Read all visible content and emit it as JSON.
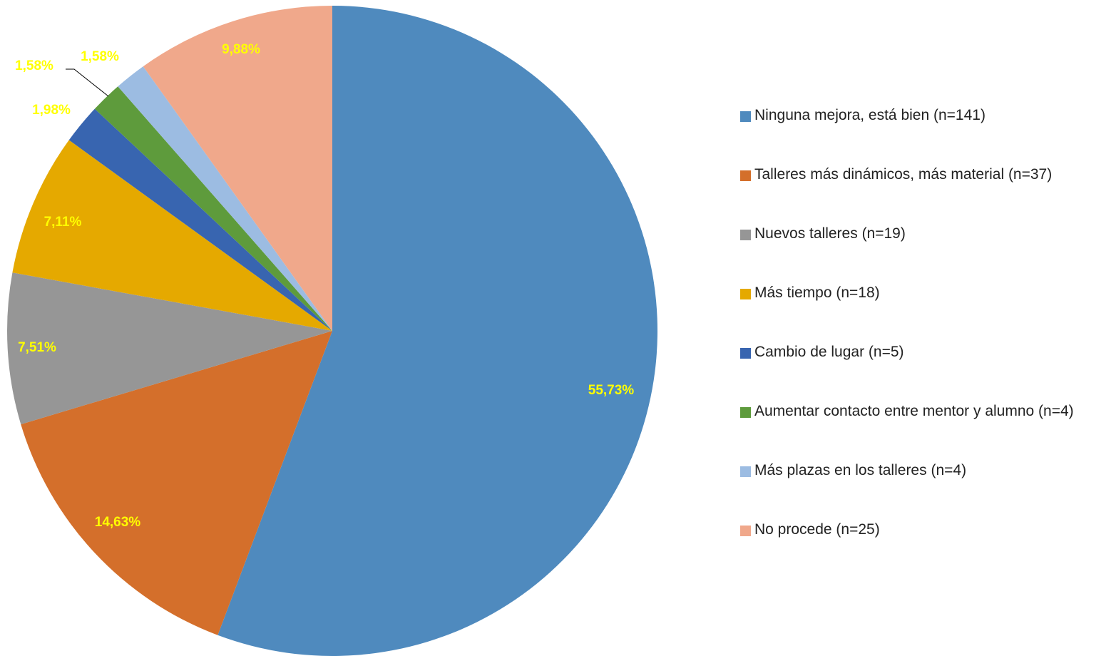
{
  "chart_data": {
    "type": "pie",
    "categories": [
      "Ninguna mejora, está bien (n=141)",
      "Talleres más dinámicos, más material (n=37)",
      "Nuevos talleres (n=19)",
      "Más tiempo (n=18)",
      "Cambio de lugar (n=5)",
      "Aumentar contacto entre mentor y alumno (n=4)",
      "Más plazas en los talleres (n=4)",
      "No procede (n=25)"
    ],
    "values": [
      55.73,
      14.63,
      7.51,
      7.11,
      1.98,
      1.58,
      1.58,
      9.88
    ],
    "value_labels": [
      "55,73%",
      "14,63%",
      "7,51%",
      "7,11%",
      "1,98%",
      "1,58%",
      "1,58%",
      "9,88%"
    ],
    "colors": [
      "#4f8abe",
      "#d46f2b",
      "#969696",
      "#e5a900",
      "#3865b0",
      "#5e9b3c",
      "#9cbce2",
      "#f0a88b"
    ],
    "legend": "right"
  }
}
